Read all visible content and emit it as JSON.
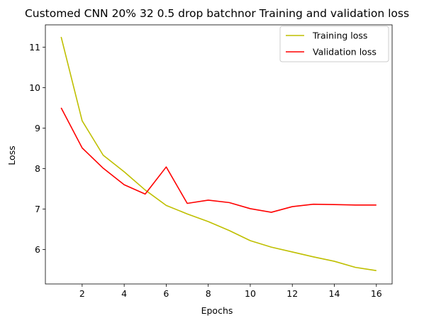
{
  "chart_data": {
    "type": "line",
    "title": "Customed CNN 20% 32 0.5 drop batchnor Training and validation loss",
    "xlabel": "Epochs",
    "ylabel": "Loss",
    "xlim": [
      0.25,
      16.75
    ],
    "ylim": [
      5.15,
      11.55
    ],
    "xticks": [
      2,
      4,
      6,
      8,
      10,
      12,
      14,
      16
    ],
    "yticks": [
      6,
      7,
      8,
      9,
      10,
      11
    ],
    "grid": false,
    "legend_position": "top-right",
    "x": [
      1,
      2,
      3,
      4,
      5,
      6,
      7,
      8,
      9,
      10,
      11,
      12,
      13,
      14,
      15,
      16
    ],
    "series": [
      {
        "name": "Training loss",
        "color": "#bfbf00",
        "values": [
          11.25,
          9.18,
          8.33,
          7.92,
          7.47,
          7.09,
          6.88,
          6.69,
          6.47,
          6.22,
          6.06,
          5.94,
          5.82,
          5.71,
          5.56,
          5.48
        ]
      },
      {
        "name": "Validation loss",
        "color": "#ff0000",
        "values": [
          9.5,
          8.51,
          8.01,
          7.6,
          7.37,
          8.04,
          7.14,
          7.22,
          7.16,
          7.01,
          6.92,
          7.06,
          7.12,
          7.11,
          7.1,
          7.1
        ]
      }
    ]
  }
}
